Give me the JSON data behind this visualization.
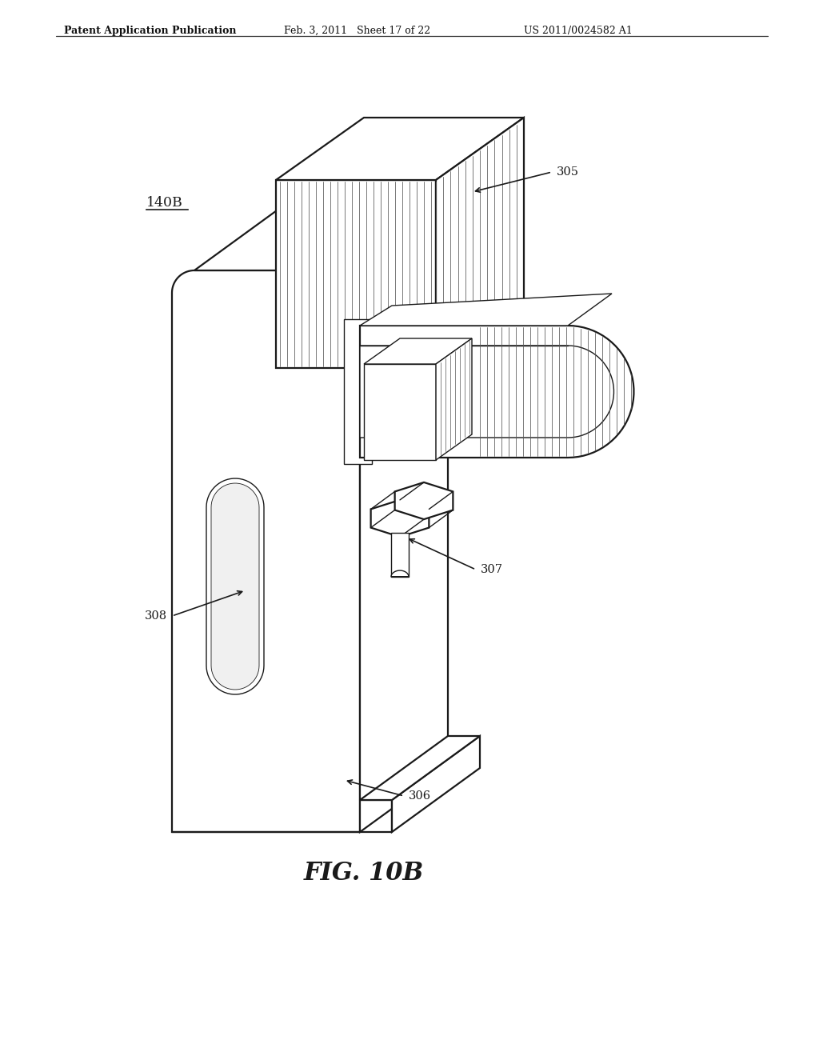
{
  "background_color": "#ffffff",
  "header_left": "Patent Application Publication",
  "header_mid": "Feb. 3, 2011   Sheet 17 of 22",
  "header_right": "US 2011/0024582 A1",
  "label_140B": "140B",
  "label_305": "305",
  "label_306": "306",
  "label_307": "307",
  "label_308": "308",
  "fig_label": "FIG. 10B",
  "lc": "#1a1a1a",
  "fc_white": "#ffffff",
  "fc_light": "#f0f0f0",
  "fc_mid": "#e0e0e0",
  "hatch_c": "#555555"
}
